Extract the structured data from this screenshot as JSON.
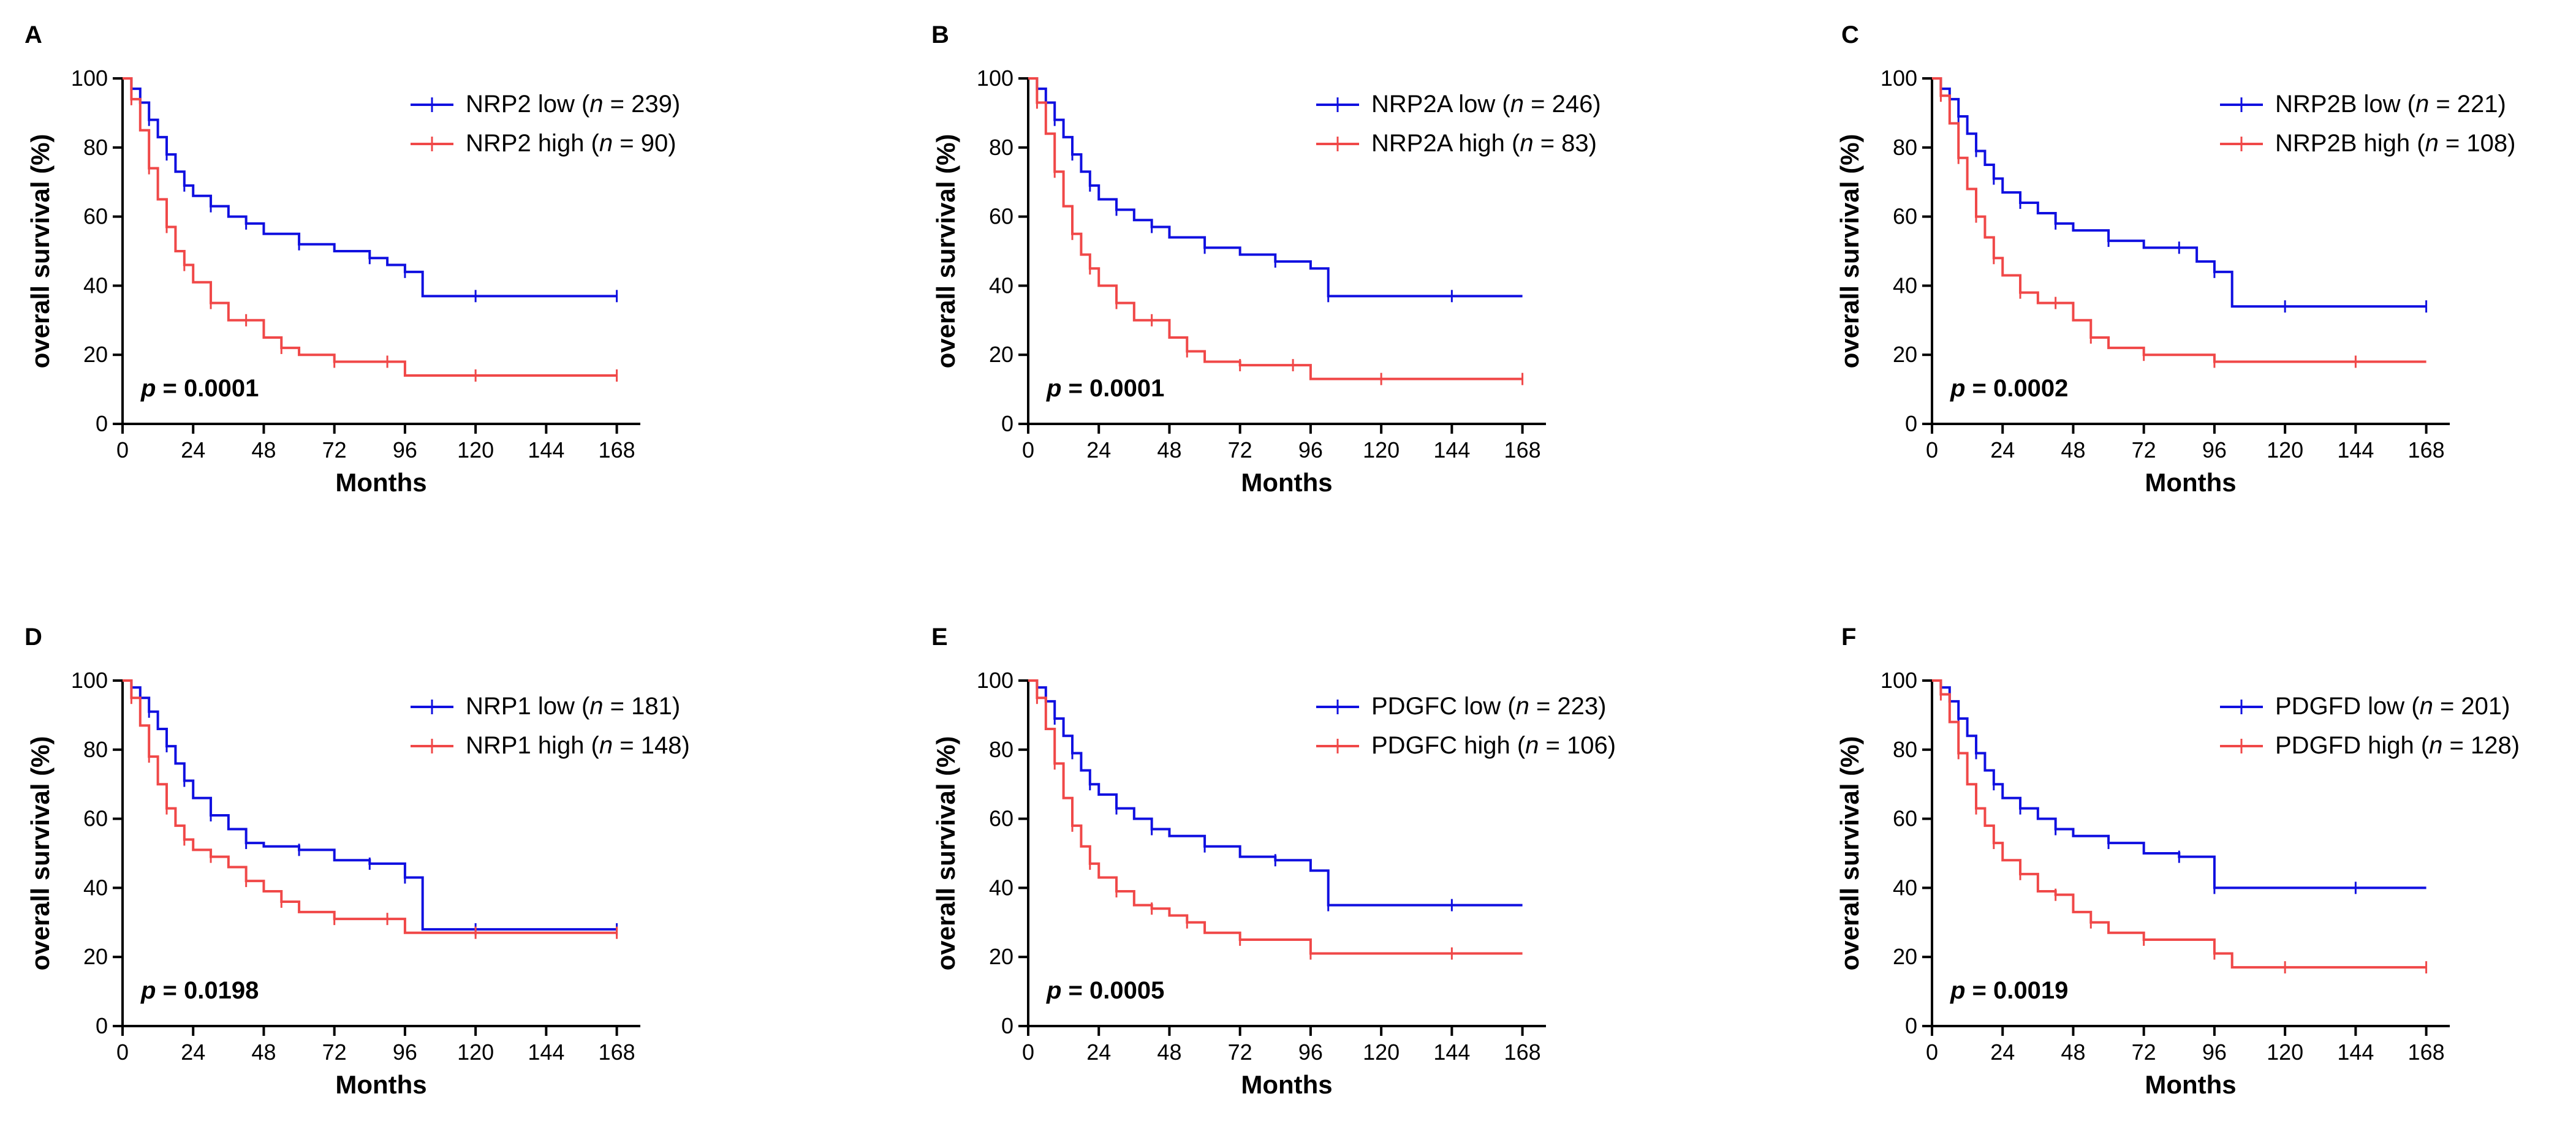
{
  "colors": {
    "low": "#1010e0",
    "high": "#f04848",
    "axis": "#000000"
  },
  "chart_data": [
    {
      "panel": "A",
      "type": "line",
      "xlabel": "Months",
      "ylabel": "overall survival (%)",
      "xlim": [
        0,
        176
      ],
      "ylim": [
        0,
        100
      ],
      "xticks": [
        "0",
        "24",
        "48",
        "72",
        "96",
        "120",
        "144",
        "168"
      ],
      "yticks": [
        "0",
        "20",
        "40",
        "60",
        "80",
        "100"
      ],
      "legend_pos": "top-right",
      "pvalue_label": "p",
      "pvalue_text": " = 0.0001",
      "series": [
        {
          "name": "NRP2 low",
          "gene": "NRP2 low",
          "n_text": " = 239)",
          "color_key": "low",
          "x": [
            0,
            3,
            6,
            9,
            12,
            15,
            18,
            21,
            24,
            30,
            36,
            42,
            48,
            60,
            72,
            84,
            90,
            96,
            102,
            120,
            144,
            168
          ],
          "y": [
            100,
            97,
            93,
            88,
            83,
            78,
            73,
            69,
            66,
            63,
            60,
            58,
            55,
            52,
            50,
            48,
            46,
            44,
            37,
            37,
            37,
            37
          ]
        },
        {
          "name": "NRP2 high",
          "gene": "NRP2 high",
          "n_text": " = 90)",
          "color_key": "high",
          "x": [
            0,
            3,
            6,
            9,
            12,
            15,
            18,
            21,
            24,
            30,
            36,
            42,
            48,
            54,
            60,
            72,
            84,
            90,
            96,
            120,
            144,
            168
          ],
          "y": [
            100,
            94,
            85,
            74,
            65,
            57,
            50,
            46,
            41,
            35,
            30,
            30,
            25,
            22,
            20,
            18,
            18,
            18,
            14,
            14,
            14,
            14
          ]
        }
      ]
    },
    {
      "panel": "B",
      "type": "line",
      "xlabel": "Months",
      "ylabel": "overall survival (%)",
      "xlim": [
        0,
        176
      ],
      "ylim": [
        0,
        100
      ],
      "xticks": [
        "0",
        "24",
        "48",
        "72",
        "96",
        "120",
        "144",
        "168"
      ],
      "yticks": [
        "0",
        "20",
        "40",
        "60",
        "80",
        "100"
      ],
      "legend_pos": "top-right",
      "pvalue_label": "p",
      "pvalue_text": " = 0.0001",
      "series": [
        {
          "name": "NRP2A low",
          "gene": "NRP2A low",
          "n_text": " = 246)",
          "color_key": "low",
          "x": [
            0,
            3,
            6,
            9,
            12,
            15,
            18,
            21,
            24,
            30,
            36,
            42,
            48,
            60,
            72,
            84,
            96,
            102,
            120,
            144,
            168
          ],
          "y": [
            100,
            97,
            93,
            88,
            83,
            78,
            73,
            69,
            65,
            62,
            59,
            57,
            54,
            51,
            49,
            47,
            45,
            37,
            37,
            37,
            37
          ]
        },
        {
          "name": "NRP2A high",
          "gene": "NRP2A high",
          "n_text": " = 83)",
          "color_key": "high",
          "x": [
            0,
            3,
            6,
            9,
            12,
            15,
            18,
            21,
            24,
            30,
            36,
            42,
            48,
            54,
            60,
            72,
            84,
            90,
            96,
            120,
            144,
            168
          ],
          "y": [
            100,
            93,
            84,
            73,
            63,
            55,
            49,
            45,
            40,
            35,
            30,
            30,
            25,
            21,
            18,
            17,
            17,
            17,
            13,
            13,
            13,
            13
          ]
        }
      ]
    },
    {
      "panel": "C",
      "type": "line",
      "xlabel": "Months",
      "ylabel": "overall survival (%)",
      "xlim": [
        0,
        176
      ],
      "ylim": [
        0,
        100
      ],
      "xticks": [
        "0",
        "24",
        "48",
        "72",
        "96",
        "120",
        "144",
        "168"
      ],
      "yticks": [
        "0",
        "20",
        "40",
        "60",
        "80",
        "100"
      ],
      "legend_pos": "top-right",
      "pvalue_label": "p",
      "pvalue_text": " = 0.0002",
      "series": [
        {
          "name": "NRP2B low",
          "gene": "NRP2B low",
          "n_text": " = 221)",
          "color_key": "low",
          "x": [
            0,
            3,
            6,
            9,
            12,
            15,
            18,
            21,
            24,
            30,
            36,
            42,
            48,
            60,
            72,
            84,
            90,
            96,
            102,
            120,
            144,
            168
          ],
          "y": [
            100,
            97,
            94,
            89,
            84,
            79,
            75,
            71,
            67,
            64,
            61,
            58,
            56,
            53,
            51,
            51,
            47,
            44,
            34,
            34,
            34,
            34
          ]
        },
        {
          "name": "NRP2B high",
          "gene": "NRP2B high",
          "n_text": " = 108)",
          "color_key": "high",
          "x": [
            0,
            3,
            6,
            9,
            12,
            15,
            18,
            21,
            24,
            30,
            36,
            42,
            48,
            54,
            60,
            72,
            84,
            96,
            120,
            144,
            168
          ],
          "y": [
            100,
            95,
            87,
            77,
            68,
            60,
            54,
            48,
            43,
            38,
            35,
            35,
            30,
            25,
            22,
            20,
            20,
            18,
            18,
            18,
            18
          ]
        }
      ]
    },
    {
      "panel": "D",
      "type": "line",
      "xlabel": "Months",
      "ylabel": "overall survival (%)",
      "xlim": [
        0,
        176
      ],
      "ylim": [
        0,
        100
      ],
      "xticks": [
        "0",
        "24",
        "48",
        "72",
        "96",
        "120",
        "144",
        "168"
      ],
      "yticks": [
        "0",
        "20",
        "40",
        "60",
        "80",
        "100"
      ],
      "legend_pos": "top-right",
      "pvalue_label": "p",
      "pvalue_text": " = 0.0198",
      "series": [
        {
          "name": "NRP1 low",
          "gene": "NRP1 low",
          "n_text": " = 181)",
          "color_key": "low",
          "x": [
            0,
            3,
            6,
            9,
            12,
            15,
            18,
            21,
            24,
            30,
            36,
            42,
            48,
            60,
            72,
            84,
            90,
            96,
            102,
            120,
            144,
            168
          ],
          "y": [
            100,
            98,
            95,
            91,
            86,
            81,
            76,
            71,
            66,
            61,
            57,
            53,
            52,
            51,
            48,
            47,
            47,
            43,
            28,
            28,
            28,
            28
          ]
        },
        {
          "name": "NRP1 high",
          "gene": "NRP1 high",
          "n_text": " = 148)",
          "color_key": "high",
          "x": [
            0,
            3,
            6,
            9,
            12,
            15,
            18,
            21,
            24,
            30,
            36,
            42,
            48,
            54,
            60,
            72,
            84,
            90,
            96,
            120,
            144,
            168
          ],
          "y": [
            100,
            95,
            87,
            78,
            70,
            63,
            58,
            54,
            51,
            49,
            46,
            42,
            39,
            36,
            33,
            31,
            31,
            31,
            27,
            27,
            27,
            27
          ]
        }
      ]
    },
    {
      "panel": "E",
      "type": "line",
      "xlabel": "Months",
      "ylabel": "overall survival (%)",
      "xlim": [
        0,
        176
      ],
      "ylim": [
        0,
        100
      ],
      "xticks": [
        "0",
        "24",
        "48",
        "72",
        "96",
        "120",
        "144",
        "168"
      ],
      "yticks": [
        "0",
        "20",
        "40",
        "60",
        "80",
        "100"
      ],
      "legend_pos": "top-right",
      "pvalue_label": "p",
      "pvalue_text": " = 0.0005",
      "series": [
        {
          "name": "PDGFC low",
          "gene": "PDGFC low",
          "n_text": " = 223)",
          "color_key": "low",
          "x": [
            0,
            3,
            6,
            9,
            12,
            15,
            18,
            21,
            24,
            30,
            36,
            42,
            48,
            60,
            72,
            84,
            96,
            102,
            120,
            144,
            168
          ],
          "y": [
            100,
            98,
            94,
            89,
            84,
            79,
            74,
            70,
            67,
            63,
            60,
            57,
            55,
            52,
            49,
            48,
            45,
            35,
            35,
            35,
            35
          ]
        },
        {
          "name": "PDGFC high",
          "gene": "PDGFC high",
          "n_text": " = 106)",
          "color_key": "high",
          "x": [
            0,
            3,
            6,
            9,
            12,
            15,
            18,
            21,
            24,
            30,
            36,
            42,
            48,
            54,
            60,
            72,
            84,
            96,
            120,
            144,
            168
          ],
          "y": [
            100,
            95,
            86,
            76,
            66,
            58,
            52,
            47,
            43,
            39,
            35,
            34,
            32,
            30,
            27,
            25,
            25,
            21,
            21,
            21,
            21
          ]
        }
      ]
    },
    {
      "panel": "F",
      "type": "line",
      "xlabel": "Months",
      "ylabel": "overall survival (%)",
      "xlim": [
        0,
        176
      ],
      "ylim": [
        0,
        100
      ],
      "xticks": [
        "0",
        "24",
        "48",
        "72",
        "96",
        "120",
        "144",
        "168"
      ],
      "yticks": [
        "0",
        "20",
        "40",
        "60",
        "80",
        "100"
      ],
      "legend_pos": "top-right",
      "pvalue_label": "p",
      "pvalue_text": " = 0.0019",
      "series": [
        {
          "name": "PDGFD low",
          "gene": "PDGFD low",
          "n_text": " = 201)",
          "color_key": "low",
          "x": [
            0,
            3,
            6,
            9,
            12,
            15,
            18,
            21,
            24,
            30,
            36,
            42,
            48,
            60,
            72,
            84,
            90,
            96,
            120,
            144,
            168
          ],
          "y": [
            100,
            98,
            94,
            89,
            84,
            79,
            74,
            70,
            66,
            63,
            60,
            57,
            55,
            53,
            50,
            49,
            49,
            40,
            40,
            40,
            40
          ]
        },
        {
          "name": "PDGFD high",
          "gene": "PDGFD high",
          "n_text": " = 128)",
          "color_key": "high",
          "x": [
            0,
            3,
            6,
            9,
            12,
            15,
            18,
            21,
            24,
            30,
            36,
            42,
            48,
            54,
            60,
            72,
            84,
            96,
            102,
            120,
            144,
            168
          ],
          "y": [
            100,
            96,
            88,
            79,
            70,
            63,
            58,
            53,
            48,
            44,
            39,
            38,
            33,
            30,
            27,
            25,
            25,
            21,
            17,
            17,
            17,
            17
          ]
        }
      ]
    }
  ]
}
